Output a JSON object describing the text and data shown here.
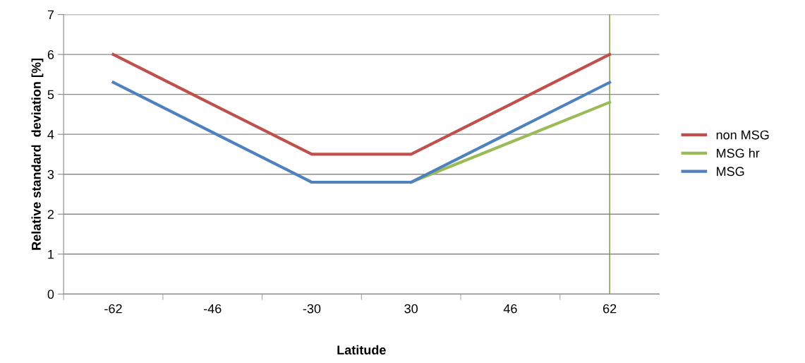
{
  "chart_data": {
    "type": "line",
    "xlabel": "Latitude",
    "ylabel": "Relative standard  deviation [%]",
    "categories": [
      "-62",
      "-46",
      "-30",
      "30",
      "46",
      "62"
    ],
    "series": [
      {
        "name": "non MSG",
        "color": "#c0504d",
        "values": [
          6,
          4.75,
          3.5,
          3.5,
          4.75,
          6
        ]
      },
      {
        "name": "MSG hr",
        "color": "#9bbb59",
        "values": [
          null,
          null,
          null,
          2.8,
          3.8,
          4.8
        ]
      },
      {
        "name": "MSG",
        "color": "#4f81bd",
        "values": [
          5.3,
          4.05,
          2.8,
          2.8,
          4.05,
          5.3
        ]
      }
    ],
    "ylim": [
      0,
      7
    ],
    "yticks": [
      0,
      1,
      2,
      3,
      4,
      5,
      6,
      7
    ],
    "grid": "y",
    "legend": "right",
    "marker": "none",
    "line_style": "solid",
    "ref_lines": [
      {
        "axis": "x",
        "value": "62",
        "color": "#77933c"
      }
    ]
  }
}
